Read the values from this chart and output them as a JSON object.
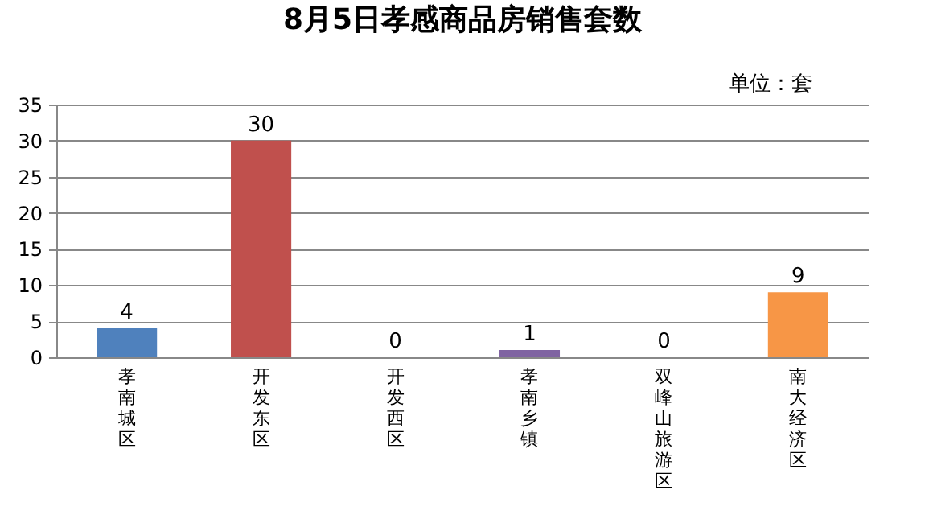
{
  "chart_data": {
    "type": "bar",
    "title": "8月5日孝感商品房销售套数",
    "categories": [
      "孝南城区",
      "开发东区",
      "开发西区",
      "孝南乡镇",
      "双峰山旅游区",
      "南大经济区"
    ],
    "values": [
      4,
      30,
      0,
      1,
      0,
      9
    ],
    "colors": [
      "#4f81bd",
      "#c0504d",
      "#9bbb59",
      "#8064a2",
      "#4bacc6",
      "#f79646"
    ],
    "ylim": [
      0,
      35
    ],
    "yticks": [
      0,
      5,
      10,
      15,
      20,
      25,
      30,
      35
    ],
    "grid": "y",
    "data_labels": true,
    "legend": false,
    "annotations": [
      "单位：套"
    ]
  }
}
